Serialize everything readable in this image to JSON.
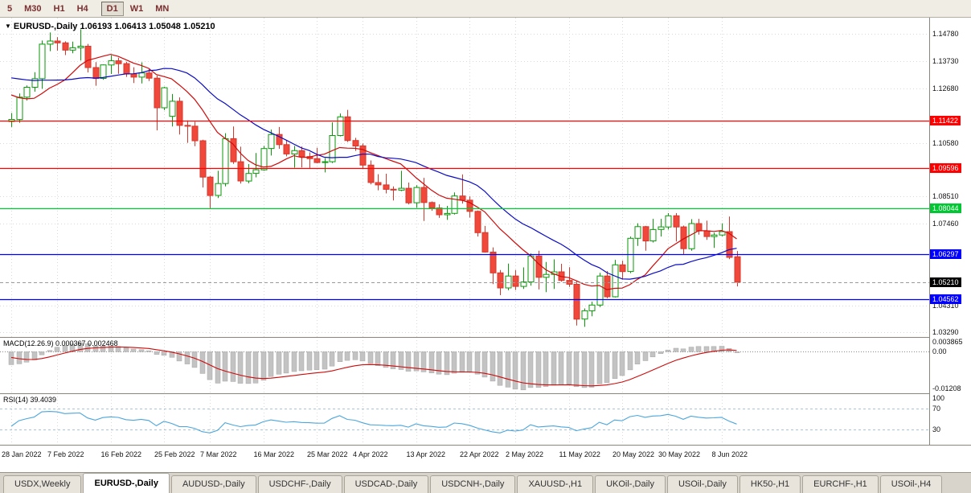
{
  "toolbar": {
    "periods": [
      "5",
      "M30",
      "H1",
      "H4",
      "D1",
      "W1",
      "MN"
    ],
    "active_period": "D1"
  },
  "chart": {
    "title_symbol": "EURUSD-,Daily",
    "title_ohlc": "1.06193 1.06413 1.05048 1.05210"
  },
  "chart_data": {
    "type": "candlestick",
    "title": "EURUSD-,Daily",
    "last_bar": {
      "open": 1.06193,
      "high": 1.06413,
      "low": 1.05048,
      "close": 1.0521
    },
    "y_range": [
      1.031,
      1.154
    ],
    "y_axis_labels": [
      {
        "text": "1.14780",
        "value": 1.1478
      },
      {
        "text": "1.13730",
        "value": 1.1373
      },
      {
        "text": "1.12680",
        "value": 1.1268
      },
      {
        "text": "1.10580",
        "value": 1.1058
      },
      {
        "text": "1.08510",
        "value": 1.0851
      },
      {
        "text": "1.07460",
        "value": 1.0746
      },
      {
        "text": "1.04310",
        "value": 1.0431
      },
      {
        "text": "1.03290",
        "value": 1.0329
      }
    ],
    "x_labels": [
      {
        "text": "28 Jan 2022",
        "index": 0
      },
      {
        "text": "7 Feb 2022",
        "index": 6
      },
      {
        "text": "16 Feb 2022",
        "index": 13
      },
      {
        "text": "25 Feb 2022",
        "index": 20
      },
      {
        "text": "7 Mar 2022",
        "index": 26
      },
      {
        "text": "16 Mar 2022",
        "index": 33
      },
      {
        "text": "25 Mar 2022",
        "index": 40
      },
      {
        "text": "4 Apr 2022",
        "index": 46
      },
      {
        "text": "13 Apr 2022",
        "index": 53
      },
      {
        "text": "22 Apr 2022",
        "index": 60
      },
      {
        "text": "2 May 2022",
        "index": 66
      },
      {
        "text": "11 May 2022",
        "index": 73
      },
      {
        "text": "20 May 2022",
        "index": 80
      },
      {
        "text": "30 May 2022",
        "index": 86
      },
      {
        "text": "8 Jun 2022",
        "index": 93
      }
    ],
    "hlines": [
      {
        "value": 1.11422,
        "label": "1.11422",
        "color": "#ff0000"
      },
      {
        "value": 1.09596,
        "label": "1.09596",
        "color": "#ff0000"
      },
      {
        "value": 1.08044,
        "label": "1.08044",
        "color": "#00c832"
      },
      {
        "value": 1.06297,
        "label": "1.06297",
        "color": "#0000ff"
      },
      {
        "value": 1.04562,
        "label": "1.04562",
        "color": "#0000ff"
      }
    ],
    "price_marker": {
      "value": 1.0521,
      "label": "1.05210",
      "color": "#000000"
    },
    "moving_averages": [
      {
        "period": 10,
        "color": "#cf0a0a"
      },
      {
        "period": 20,
        "color": "#0b0bc4"
      }
    ],
    "prior_closes": [
      1.1304,
      1.1286,
      1.1332,
      1.1355,
      1.1364,
      1.133,
      1.1296,
      1.1318,
      1.1343,
      1.1358,
      1.1412,
      1.1453,
      1.1432,
      1.1405,
      1.137,
      1.134,
      1.1312,
      1.1343,
      1.1315,
      1.1282,
      1.126,
      1.1238,
      1.1301,
      1.1245,
      1.115,
      1.1143
    ],
    "candles": [
      [
        1.114,
        1.1173,
        1.1119,
        1.1148
      ],
      [
        1.1148,
        1.1248,
        1.1135,
        1.1234
      ],
      [
        1.1234,
        1.1279,
        1.1221,
        1.1272
      ],
      [
        1.1272,
        1.133,
        1.1255,
        1.1305
      ],
      [
        1.1305,
        1.1452,
        1.1266,
        1.1438
      ],
      [
        1.1438,
        1.1483,
        1.1411,
        1.145
      ],
      [
        1.145,
        1.1465,
        1.1413,
        1.1443
      ],
      [
        1.1443,
        1.1449,
        1.1396,
        1.1415
      ],
      [
        1.1415,
        1.1448,
        1.1403,
        1.1424
      ],
      [
        1.1424,
        1.1495,
        1.1375,
        1.143
      ],
      [
        1.143,
        1.1439,
        1.1329,
        1.1348
      ],
      [
        1.1348,
        1.1369,
        1.1278,
        1.1306
      ],
      [
        1.1306,
        1.136,
        1.1301,
        1.1358
      ],
      [
        1.1358,
        1.1395,
        1.1323,
        1.1374
      ],
      [
        1.1374,
        1.1386,
        1.1324,
        1.1363
      ],
      [
        1.1363,
        1.137,
        1.1312,
        1.1323
      ],
      [
        1.1323,
        1.1349,
        1.1288,
        1.1311
      ],
      [
        1.1311,
        1.1368,
        1.1287,
        1.1327
      ],
      [
        1.1327,
        1.1344,
        1.1296,
        1.1307
      ],
      [
        1.1307,
        1.1317,
        1.1106,
        1.1193
      ],
      [
        1.1193,
        1.1274,
        1.1184,
        1.127
      ],
      [
        1.116,
        1.1246,
        1.1121,
        1.1218
      ],
      [
        1.1218,
        1.1233,
        1.109,
        1.1125
      ],
      [
        1.1125,
        1.1144,
        1.1058,
        1.1122
      ],
      [
        1.1122,
        1.1139,
        1.1045,
        1.1066
      ],
      [
        1.1066,
        1.107,
        1.0886,
        1.0926
      ],
      [
        1.0926,
        1.093,
        1.0806,
        1.0855
      ],
      [
        1.0855,
        1.095,
        1.0845,
        1.0901
      ],
      [
        1.0901,
        1.1095,
        1.089,
        1.1074
      ],
      [
        1.1074,
        1.1121,
        1.0977,
        1.0985
      ],
      [
        1.0985,
        1.1043,
        1.0901,
        1.0911
      ],
      [
        1.0911,
        1.0976,
        1.0902,
        1.094
      ],
      [
        1.094,
        1.1019,
        1.0925,
        1.0954
      ],
      [
        1.0954,
        1.1046,
        1.095,
        1.1036
      ],
      [
        1.1036,
        1.1109,
        1.1009,
        1.109
      ],
      [
        1.109,
        1.1119,
        1.1035,
        1.1051
      ],
      [
        1.1051,
        1.1069,
        1.1006,
        1.1015
      ],
      [
        1.1015,
        1.1046,
        1.0962,
        1.1028
      ],
      [
        1.1028,
        1.1044,
        1.0963,
        1.1005
      ],
      [
        1.1005,
        1.1021,
        1.0961,
        1.0997
      ],
      [
        1.0997,
        1.1039,
        1.0979,
        1.0982
      ],
      [
        1.0982,
        1.0999,
        1.0944,
        1.0985
      ],
      [
        1.0985,
        1.1137,
        1.098,
        1.1086
      ],
      [
        1.1086,
        1.1171,
        1.1083,
        1.1158
      ],
      [
        1.1158,
        1.1185,
        1.1061,
        1.1067
      ],
      [
        1.1067,
        1.1077,
        1.1027,
        1.1046
      ],
      [
        1.1046,
        1.1055,
        1.096,
        1.0972
      ],
      [
        1.0972,
        1.099,
        1.0898,
        1.0905
      ],
      [
        1.0905,
        1.0937,
        1.0875,
        1.0896
      ],
      [
        1.0896,
        1.0939,
        1.0863,
        1.0879
      ],
      [
        1.0879,
        1.089,
        1.0836,
        1.0876
      ],
      [
        1.0876,
        1.095,
        1.0872,
        1.0883
      ],
      [
        1.0883,
        1.0905,
        1.0821,
        1.0827
      ],
      [
        1.0827,
        1.0895,
        1.0808,
        1.0886
      ],
      [
        1.0886,
        1.0923,
        1.0757,
        1.0828
      ],
      [
        1.0828,
        1.0832,
        1.0796,
        1.0807
      ],
      [
        1.0807,
        1.0821,
        1.0769,
        1.0781
      ],
      [
        1.0781,
        1.0815,
        1.0761,
        1.0786
      ],
      [
        1.0786,
        1.0867,
        1.0782,
        1.0853
      ],
      [
        1.0853,
        1.0936,
        1.0824,
        1.0837
      ],
      [
        1.0837,
        1.0852,
        1.077,
        1.0794
      ],
      [
        1.0794,
        1.0797,
        1.0697,
        1.0712
      ],
      [
        1.0712,
        1.0738,
        1.0635,
        1.0637
      ],
      [
        1.0637,
        1.0655,
        1.0514,
        1.0557
      ],
      [
        1.0557,
        1.0568,
        1.0471,
        1.0499
      ],
      [
        1.0499,
        1.0593,
        1.049,
        1.0545
      ],
      [
        1.0545,
        1.0568,
        1.0491,
        1.0505
      ],
      [
        1.0505,
        1.0578,
        1.0495,
        1.0522
      ],
      [
        1.0522,
        1.0632,
        1.0508,
        1.0622
      ],
      [
        1.0622,
        1.0642,
        1.0493,
        1.054
      ],
      [
        1.054,
        1.0599,
        1.0483,
        1.0551
      ],
      [
        1.0551,
        1.0609,
        1.0495,
        1.0561
      ],
      [
        1.0561,
        1.0592,
        1.0523,
        1.0528
      ],
      [
        1.0528,
        1.0579,
        1.0503,
        1.0513
      ],
      [
        1.0513,
        1.0525,
        1.0354,
        1.0379
      ],
      [
        1.0379,
        1.042,
        1.0349,
        1.0411
      ],
      [
        1.0411,
        1.0446,
        1.039,
        1.0433
      ],
      [
        1.0433,
        1.0557,
        1.0425,
        1.0545
      ],
      [
        1.0545,
        1.0564,
        1.0459,
        1.0465
      ],
      [
        1.0465,
        1.0607,
        1.0462,
        1.0588
      ],
      [
        1.0588,
        1.0604,
        1.0531,
        1.0562
      ],
      [
        1.0562,
        1.0697,
        1.0556,
        1.069
      ],
      [
        1.069,
        1.0748,
        1.0661,
        1.0735
      ],
      [
        1.0735,
        1.0738,
        1.0642,
        1.068
      ],
      [
        1.068,
        1.0765,
        1.0674,
        1.0724
      ],
      [
        1.0724,
        1.0765,
        1.0697,
        1.0734
      ],
      [
        1.0734,
        1.0787,
        1.0724,
        1.0777
      ],
      [
        1.0777,
        1.0787,
        1.0678,
        1.0734
      ],
      [
        1.0734,
        1.0739,
        1.0627,
        1.065
      ],
      [
        1.065,
        1.0764,
        1.0642,
        1.0747
      ],
      [
        1.0747,
        1.0765,
        1.0704,
        1.0719
      ],
      [
        1.0719,
        1.0758,
        1.0684,
        1.0697
      ],
      [
        1.0697,
        1.0712,
        1.0653,
        1.0703
      ],
      [
        1.0703,
        1.0748,
        1.0698,
        1.0716
      ],
      [
        1.0716,
        1.0774,
        1.061,
        1.0617
      ],
      [
        1.06193,
        1.06413,
        1.05048,
        1.0521
      ]
    ],
    "macd": {
      "full_label": "MACD(12.26.9) 0.000367 0.002468",
      "params": [
        12,
        26,
        9
      ],
      "range": [
        -0.0135,
        0.0048
      ],
      "axis_labels": [
        {
          "text": "0.003865",
          "value": 0.003865
        },
        {
          "text": "0.00",
          "value": 0
        },
        {
          "text": "-0.01208",
          "value": -0.01208
        }
      ],
      "histogram_color": "#c3c3c3",
      "histogram_stroke": "#a6a6a6",
      "signal_color": "#cf0a0a"
    },
    "rsi": {
      "full_label": "RSI(14) 39.4039",
      "period": 14,
      "range": [
        0,
        100
      ],
      "levels": [
        70,
        30
      ],
      "axis_labels": [
        {
          "text": "100",
          "value": 100
        },
        {
          "text": "70",
          "value": 70
        },
        {
          "text": "30",
          "value": 30
        }
      ],
      "line_color": "#4ba6dd",
      "level_color": "#a9c4da"
    },
    "colors": {
      "grid": "#d9d9d9",
      "bull_fill": "#ffffff",
      "bull_stroke": "#0a9a0a",
      "bear_fill": "#f0483a",
      "bear_stroke": "#d6362b"
    }
  },
  "tabs": {
    "active": "EURUSD-,Daily",
    "items": [
      "USDX,Weekly",
      "EURUSD-,Daily",
      "AUDUSD-,Daily",
      "USDCHF-,Daily",
      "USDCAD-,Daily",
      "USDCNH-,Daily",
      "XAUUSD-,H1",
      "UKOil-,Daily",
      "USOil-,Daily",
      "HK50-,H1",
      "EURCHF-,H1",
      "USOil-,H4"
    ]
  }
}
